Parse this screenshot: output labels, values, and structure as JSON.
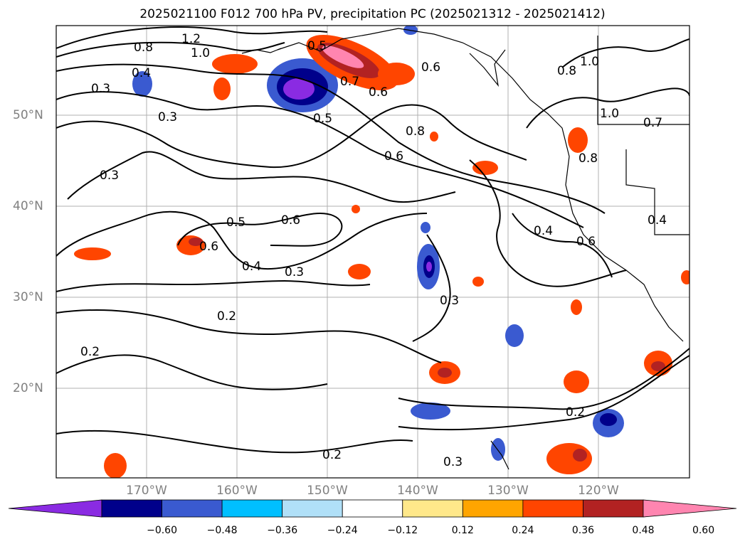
{
  "title": "2025021100 F012 700 hPa PV, precipitation PC (2025021312 - 2025021412)",
  "lat_labels": [
    "50°N",
    "40°N",
    "30°N",
    "20°N"
  ],
  "lon_labels": [
    "170°W",
    "160°W",
    "150°W",
    "140°W",
    "130°W",
    "120°W"
  ],
  "contour_labels": [
    "1.2",
    "1.0",
    "0.8",
    "0.4",
    "0.3",
    "0.3",
    "0.5",
    "0.5",
    "0.7",
    "0.6",
    "0.6",
    "0.8",
    "0.6",
    "1.0",
    "0.8",
    "1.0",
    "0.7",
    "0.8",
    "0.4",
    "0.5",
    "0.6",
    "0.6",
    "0.4",
    "0.3",
    "0.4",
    "0.6",
    "0.3",
    "0.3",
    "0.2",
    "0.2",
    "0.2",
    "0.3",
    "0.2"
  ],
  "colorbar": {
    "ticks": [
      "−0.60",
      "−0.48",
      "−0.36",
      "−0.24",
      "−0.12",
      "0.12",
      "0.24",
      "0.36",
      "0.48",
      "0.60"
    ],
    "colors": [
      "#8a2be2",
      "#00008b",
      "#3a5ad0",
      "#00bfff",
      "#b0e0f8",
      "#ffffff",
      "#ffe88a",
      "#ffa500",
      "#ff4500",
      "#b22222",
      "#ff85b0"
    ]
  }
}
